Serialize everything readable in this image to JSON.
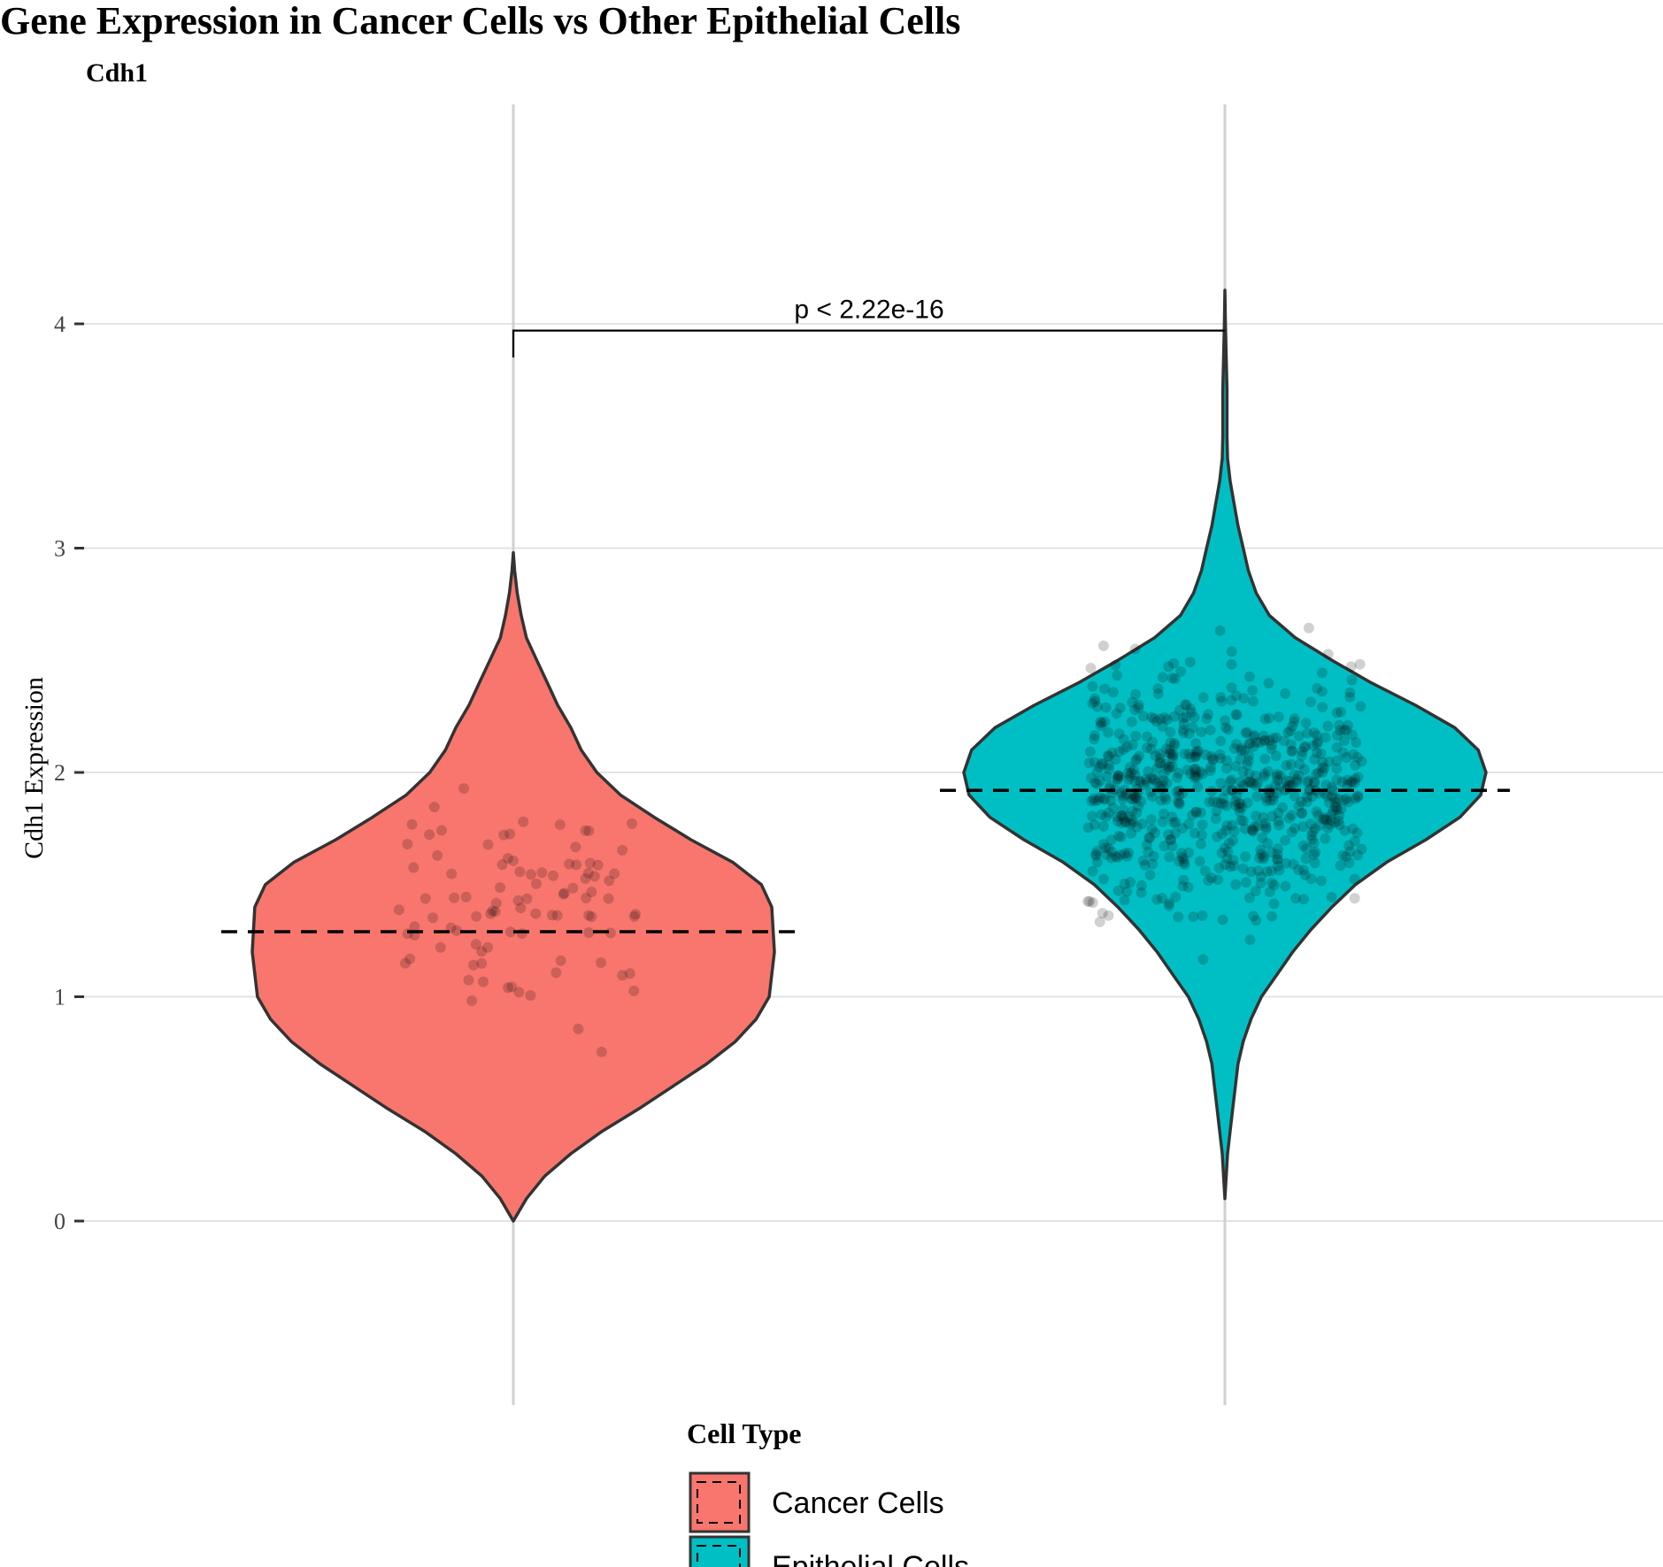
{
  "chart_data": {
    "type": "violin",
    "title": "Gene Expression in Cancer Cells vs Other Epithelial Cells",
    "subtitle": "Cdh1",
    "ylabel": "Cdh1 Expression",
    "xlabel": "",
    "ylim": [
      -0.8,
      4.9
    ],
    "yticks": [
      0,
      1,
      2,
      3,
      4
    ],
    "grid": true,
    "legend": {
      "title": "Cell Type",
      "position": "bottom",
      "entries": [
        "Cancer Cells",
        "Epithelial Cells"
      ]
    },
    "annotation": {
      "text": "p < 2.22e-16",
      "bracket_y": 3.97,
      "left_tick_bottom": 3.85,
      "right_tick_bottom": 3.97
    },
    "series": [
      {
        "name": "Cancer Cells",
        "color": "#F8766D",
        "mean": 1.29,
        "range": [
          0.0,
          2.98
        ],
        "density_profile": [
          [
            0.0,
            0.0
          ],
          [
            0.1,
            0.05
          ],
          [
            0.2,
            0.12
          ],
          [
            0.3,
            0.22
          ],
          [
            0.4,
            0.34
          ],
          [
            0.5,
            0.48
          ],
          [
            0.6,
            0.61
          ],
          [
            0.7,
            0.74
          ],
          [
            0.8,
            0.85
          ],
          [
            0.9,
            0.93
          ],
          [
            1.0,
            0.98
          ],
          [
            1.2,
            1.0
          ],
          [
            1.4,
            0.99
          ],
          [
            1.5,
            0.95
          ],
          [
            1.6,
            0.84
          ],
          [
            1.7,
            0.68
          ],
          [
            1.8,
            0.54
          ],
          [
            1.9,
            0.41
          ],
          [
            2.0,
            0.32
          ],
          [
            2.1,
            0.26
          ],
          [
            2.2,
            0.22
          ],
          [
            2.3,
            0.17
          ],
          [
            2.4,
            0.13
          ],
          [
            2.5,
            0.09
          ],
          [
            2.6,
            0.05
          ],
          [
            2.7,
            0.03
          ],
          [
            2.8,
            0.015
          ],
          [
            2.9,
            0.005
          ],
          [
            2.98,
            0.0
          ]
        ],
        "n_points": 95
      },
      {
        "name": "Epithelial Cells",
        "color": "#00BFC4",
        "mean": 1.92,
        "range": [
          0.1,
          4.15
        ],
        "density_profile": [
          [
            0.1,
            0.0
          ],
          [
            0.2,
            0.005
          ],
          [
            0.3,
            0.01
          ],
          [
            0.4,
            0.02
          ],
          [
            0.5,
            0.03
          ],
          [
            0.6,
            0.04
          ],
          [
            0.7,
            0.05
          ],
          [
            0.8,
            0.07
          ],
          [
            0.9,
            0.1
          ],
          [
            1.0,
            0.14
          ],
          [
            1.1,
            0.2
          ],
          [
            1.2,
            0.26
          ],
          [
            1.3,
            0.33
          ],
          [
            1.4,
            0.41
          ],
          [
            1.5,
            0.5
          ],
          [
            1.6,
            0.62
          ],
          [
            1.7,
            0.77
          ],
          [
            1.8,
            0.9
          ],
          [
            1.9,
            0.98
          ],
          [
            2.0,
            1.0
          ],
          [
            2.1,
            0.97
          ],
          [
            2.2,
            0.88
          ],
          [
            2.3,
            0.73
          ],
          [
            2.4,
            0.56
          ],
          [
            2.5,
            0.41
          ],
          [
            2.6,
            0.27
          ],
          [
            2.7,
            0.17
          ],
          [
            2.8,
            0.12
          ],
          [
            2.9,
            0.09
          ],
          [
            3.0,
            0.07
          ],
          [
            3.1,
            0.05
          ],
          [
            3.2,
            0.035
          ],
          [
            3.3,
            0.02
          ],
          [
            3.4,
            0.01
          ],
          [
            3.5,
            0.008
          ],
          [
            3.6,
            0.008
          ],
          [
            3.7,
            0.008
          ],
          [
            3.8,
            0.006
          ],
          [
            3.9,
            0.004
          ],
          [
            4.0,
            0.002
          ],
          [
            4.15,
            0.0
          ]
        ],
        "n_points": 700
      }
    ]
  }
}
